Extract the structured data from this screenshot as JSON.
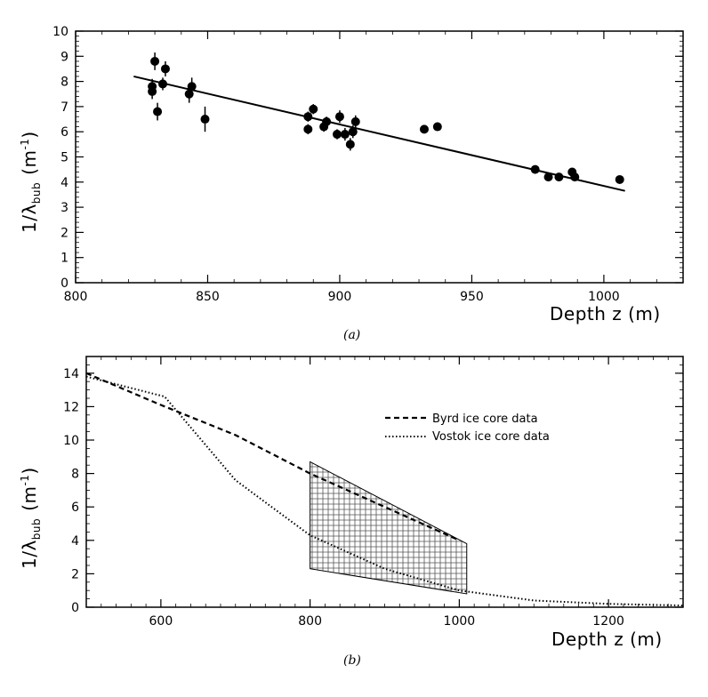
{
  "chart_data": [
    {
      "type": "scatter",
      "panel": "(a)",
      "xlabel": "Depth z (m)",
      "ylabel": "1/λ_bub (m⁻¹)",
      "ylabel_main": "1/λ",
      "ylabel_sub": "bub",
      "ylabel_unit": "(m",
      "ylabel_exp": "-1",
      "ylabel_close": ")",
      "xlim": [
        800,
        1030
      ],
      "ylim": [
        0,
        10
      ],
      "xticks": [
        800,
        850,
        900,
        950,
        1000
      ],
      "yticks": [
        0,
        1,
        2,
        3,
        4,
        5,
        6,
        7,
        8,
        9,
        10
      ],
      "series": [
        {
          "name": "measurements",
          "style": "points-with-error-bars",
          "points": [
            {
              "x": 829,
              "y": 7.6,
              "err": 0.3
            },
            {
              "x": 829,
              "y": 7.8,
              "err": 0.3
            },
            {
              "x": 830,
              "y": 8.8,
              "err": 0.35
            },
            {
              "x": 831,
              "y": 6.8,
              "err": 0.35
            },
            {
              "x": 833,
              "y": 7.9,
              "err": 0.25
            },
            {
              "x": 834,
              "y": 8.5,
              "err": 0.3
            },
            {
              "x": 843,
              "y": 7.5,
              "err": 0.35
            },
            {
              "x": 844,
              "y": 7.8,
              "err": 0.35
            },
            {
              "x": 849,
              "y": 6.5,
              "err": 0.5
            },
            {
              "x": 888,
              "y": 6.1,
              "err": 0.2
            },
            {
              "x": 888,
              "y": 6.6,
              "err": 0.2
            },
            {
              "x": 890,
              "y": 6.9,
              "err": 0.2
            },
            {
              "x": 894,
              "y": 6.2,
              "err": 0.2
            },
            {
              "x": 895,
              "y": 6.4,
              "err": 0.2
            },
            {
              "x": 899,
              "y": 5.9,
              "err": 0.2
            },
            {
              "x": 900,
              "y": 6.6,
              "err": 0.25
            },
            {
              "x": 902,
              "y": 5.9,
              "err": 0.25
            },
            {
              "x": 904,
              "y": 5.5,
              "err": 0.25
            },
            {
              "x": 905,
              "y": 6.0,
              "err": 0.25
            },
            {
              "x": 906,
              "y": 6.4,
              "err": 0.25
            },
            {
              "x": 932,
              "y": 6.1,
              "err": 0.15
            },
            {
              "x": 937,
              "y": 6.2,
              "err": 0.15
            },
            {
              "x": 974,
              "y": 4.5,
              "err": 0.1
            },
            {
              "x": 979,
              "y": 4.2,
              "err": 0.1
            },
            {
              "x": 983,
              "y": 4.2,
              "err": 0.1
            },
            {
              "x": 988,
              "y": 4.4,
              "err": 0.15
            },
            {
              "x": 989,
              "y": 4.2,
              "err": 0.15
            },
            {
              "x": 1006,
              "y": 4.1,
              "err": 0.1
            }
          ]
        },
        {
          "name": "linear fit",
          "style": "solid",
          "x": [
            822,
            1008
          ],
          "y": [
            8.2,
            3.65
          ]
        }
      ]
    },
    {
      "type": "line",
      "panel": "(b)",
      "xlabel": "Depth z (m)",
      "ylabel": "1/λ_bub (m⁻¹)",
      "ylabel_main": "1/λ",
      "ylabel_sub": "bub",
      "ylabel_unit": "(m",
      "ylabel_exp": "-1",
      "ylabel_close": ")",
      "xlim": [
        500,
        1300
      ],
      "ylim": [
        0,
        15
      ],
      "xticks": [
        600,
        800,
        1000,
        1200
      ],
      "xtick_labels": [
        "600",
        "800",
        "1000",
        "1200"
      ],
      "yticks": [
        0,
        2,
        4,
        6,
        8,
        10,
        12,
        14
      ],
      "legend": "top-right",
      "series": [
        {
          "name": "Byrd ice core data",
          "style": "dashed",
          "x": [
            500,
            600,
            700,
            800,
            1000
          ],
          "y": [
            14.0,
            12.1,
            10.3,
            8.0,
            4.0
          ]
        },
        {
          "name": "Vostok ice core data",
          "style": "dotted",
          "x": [
            500,
            605,
            700,
            800,
            900,
            1000,
            1100,
            1200,
            1300
          ],
          "y": [
            13.8,
            12.6,
            7.6,
            4.3,
            2.3,
            1.0,
            0.4,
            0.2,
            0.1
          ]
        }
      ],
      "shaded_region": {
        "x": [
          800,
          1010,
          1010,
          800
        ],
        "y": [
          8.7,
          3.8,
          0.8,
          2.3
        ]
      }
    }
  ],
  "captions": {
    "a": "(a)",
    "b": "(b)"
  }
}
